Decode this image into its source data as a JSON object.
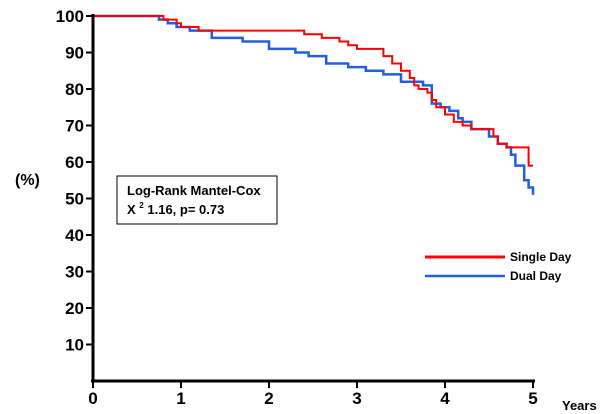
{
  "chart_data": {
    "type": "line",
    "subtype": "kaplan-meier step curve",
    "xlabel": "Years",
    "ylabel": "(%)",
    "xlim": [
      0,
      5
    ],
    "ylim": [
      0,
      100
    ],
    "x_ticks": [
      0,
      1,
      2,
      3,
      4,
      5
    ],
    "y_ticks": [
      10,
      20,
      30,
      40,
      50,
      60,
      70,
      80,
      90,
      100
    ],
    "grid": false,
    "legend_position": "right",
    "series": [
      {
        "name": "Single Day",
        "color": "#ff0000",
        "x": [
          0,
          0.8,
          0.95,
          1.0,
          1.2,
          2.25,
          2.4,
          2.6,
          2.8,
          2.9,
          3.0,
          3.3,
          3.4,
          3.5,
          3.6,
          3.65,
          3.7,
          3.8,
          3.85,
          3.9,
          4.0,
          4.1,
          4.2,
          4.3,
          4.55,
          4.6,
          4.7,
          4.95,
          5.0
        ],
        "y": [
          100,
          99,
          98,
          97,
          96,
          96,
          95,
          94,
          93,
          92,
          91,
          89,
          87,
          85,
          83,
          81,
          80,
          79,
          77,
          75,
          73,
          71,
          70,
          69,
          67,
          65,
          64,
          59,
          59
        ]
      },
      {
        "name": "Dual Day",
        "color": "#2060e0",
        "x": [
          0,
          0.75,
          0.85,
          0.95,
          1.1,
          1.35,
          1.7,
          2.0,
          2.3,
          2.45,
          2.65,
          2.9,
          3.1,
          3.3,
          3.5,
          3.75,
          3.85,
          3.95,
          4.05,
          4.15,
          4.2,
          4.3,
          4.5,
          4.6,
          4.7,
          4.75,
          4.8,
          4.9,
          4.95,
          5.0
        ],
        "y": [
          100,
          99,
          98,
          97,
          96,
          94,
          93,
          91,
          90,
          89,
          87,
          86,
          85,
          84,
          82,
          81,
          76,
          75,
          74,
          72,
          71,
          69,
          67,
          65,
          64,
          62,
          59,
          55,
          53,
          51
        ]
      }
    ],
    "annotation": {
      "line1": "Log-Rank Mantel-Cox",
      "line2_prefix": "X",
      "line2_sup": "2",
      "line2_rest": " 1.16, p= 0.73"
    }
  }
}
